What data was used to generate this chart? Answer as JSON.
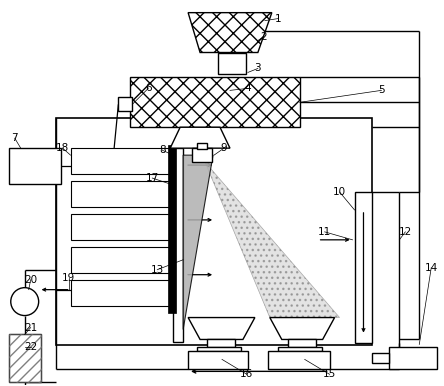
{
  "fig_width": 4.44,
  "fig_height": 3.86,
  "dpi": 100,
  "bg_color": "#ffffff"
}
